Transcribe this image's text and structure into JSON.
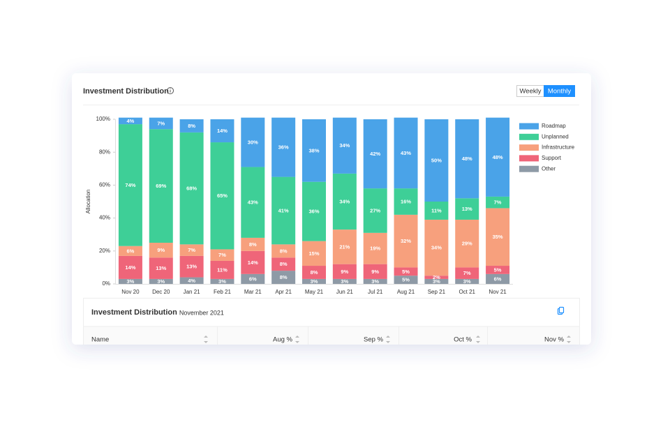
{
  "header": {
    "title": "Investment Distribution"
  },
  "toggle": [
    "Weekly",
    "Monthly"
  ],
  "chart_data": {
    "type": "stacked_bar",
    "y_label": "Allocation",
    "categories": [
      "Nov 20",
      "Dec 20",
      "Jan 21",
      "Feb 21",
      "Mar 21",
      "Apr 21",
      "May 21",
      "Jun 21",
      "Jul 21",
      "Aug 21",
      "Sep 21",
      "Oct 21",
      "Nov 21"
    ],
    "ylim": [
      0,
      100
    ],
    "yticks": [
      {
        "value": 0,
        "label": "0%"
      },
      {
        "value": 20,
        "label": "20%"
      },
      {
        "value": 40,
        "label": "40%"
      },
      {
        "value": 60,
        "label": "60%"
      },
      {
        "value": 80,
        "label": "80%"
      },
      {
        "value": 100,
        "label": "100%"
      }
    ],
    "legend": "right",
    "series": [
      {
        "name": "Roadmap",
        "color": "#4aa3e8",
        "values": [
          4,
          7,
          8,
          14,
          30,
          36,
          38,
          34,
          42,
          43,
          50,
          48,
          48
        ],
        "value_labels": [
          "4%",
          "7%",
          "8%",
          "14%",
          "30%",
          "36%",
          "38%",
          "34%",
          "42%",
          "43%",
          "50%",
          "48%",
          "48%"
        ]
      },
      {
        "name": "Unplanned",
        "color": "#3ecf97",
        "values": [
          74,
          69,
          68,
          65,
          43,
          41,
          36,
          34,
          27,
          16,
          11,
          13,
          7
        ],
        "value_labels": [
          "74%",
          "69%",
          "68%",
          "65%",
          "43%",
          "41%",
          "36%",
          "34%",
          "27%",
          "16%",
          "11%",
          "13%",
          "7%"
        ]
      },
      {
        "name": "Infrastructure",
        "color": "#f7a07d",
        "values": [
          6,
          9,
          7,
          7,
          8,
          8,
          15,
          21,
          19,
          32,
          34,
          29,
          35
        ],
        "value_labels": [
          "6%",
          "9%",
          "7%",
          "7%",
          "8%",
          "8%",
          "15%",
          "21%",
          "19%",
          "32%",
          "34%",
          "29%",
          "35%"
        ]
      },
      {
        "name": "Support",
        "color": "#ef6579",
        "values": [
          14,
          13,
          13,
          11,
          14,
          8,
          8,
          9,
          9,
          5,
          2,
          7,
          5
        ],
        "value_labels": [
          "14%",
          "13%",
          "13%",
          "11%",
          "14%",
          "8%",
          "8%",
          "9%",
          "9%",
          "5%",
          "2%",
          "7%",
          "5%"
        ]
      },
      {
        "name": "Other",
        "color": "#8e9aa6",
        "values": [
          3,
          3,
          4,
          3,
          6,
          8,
          3,
          3,
          3,
          5,
          3,
          3,
          6
        ],
        "value_labels": [
          "3%",
          "3%",
          "4%",
          "3%",
          "6%",
          "8%",
          "3%",
          "3%",
          "3%",
          "5%",
          "3%",
          "3%",
          "6%"
        ]
      }
    ]
  },
  "table": {
    "title": "Investment Distribution",
    "subtitle": "November 2021",
    "columns": [
      "Name",
      "Aug %",
      "Sep %",
      "Oct %",
      "Nov %"
    ]
  }
}
